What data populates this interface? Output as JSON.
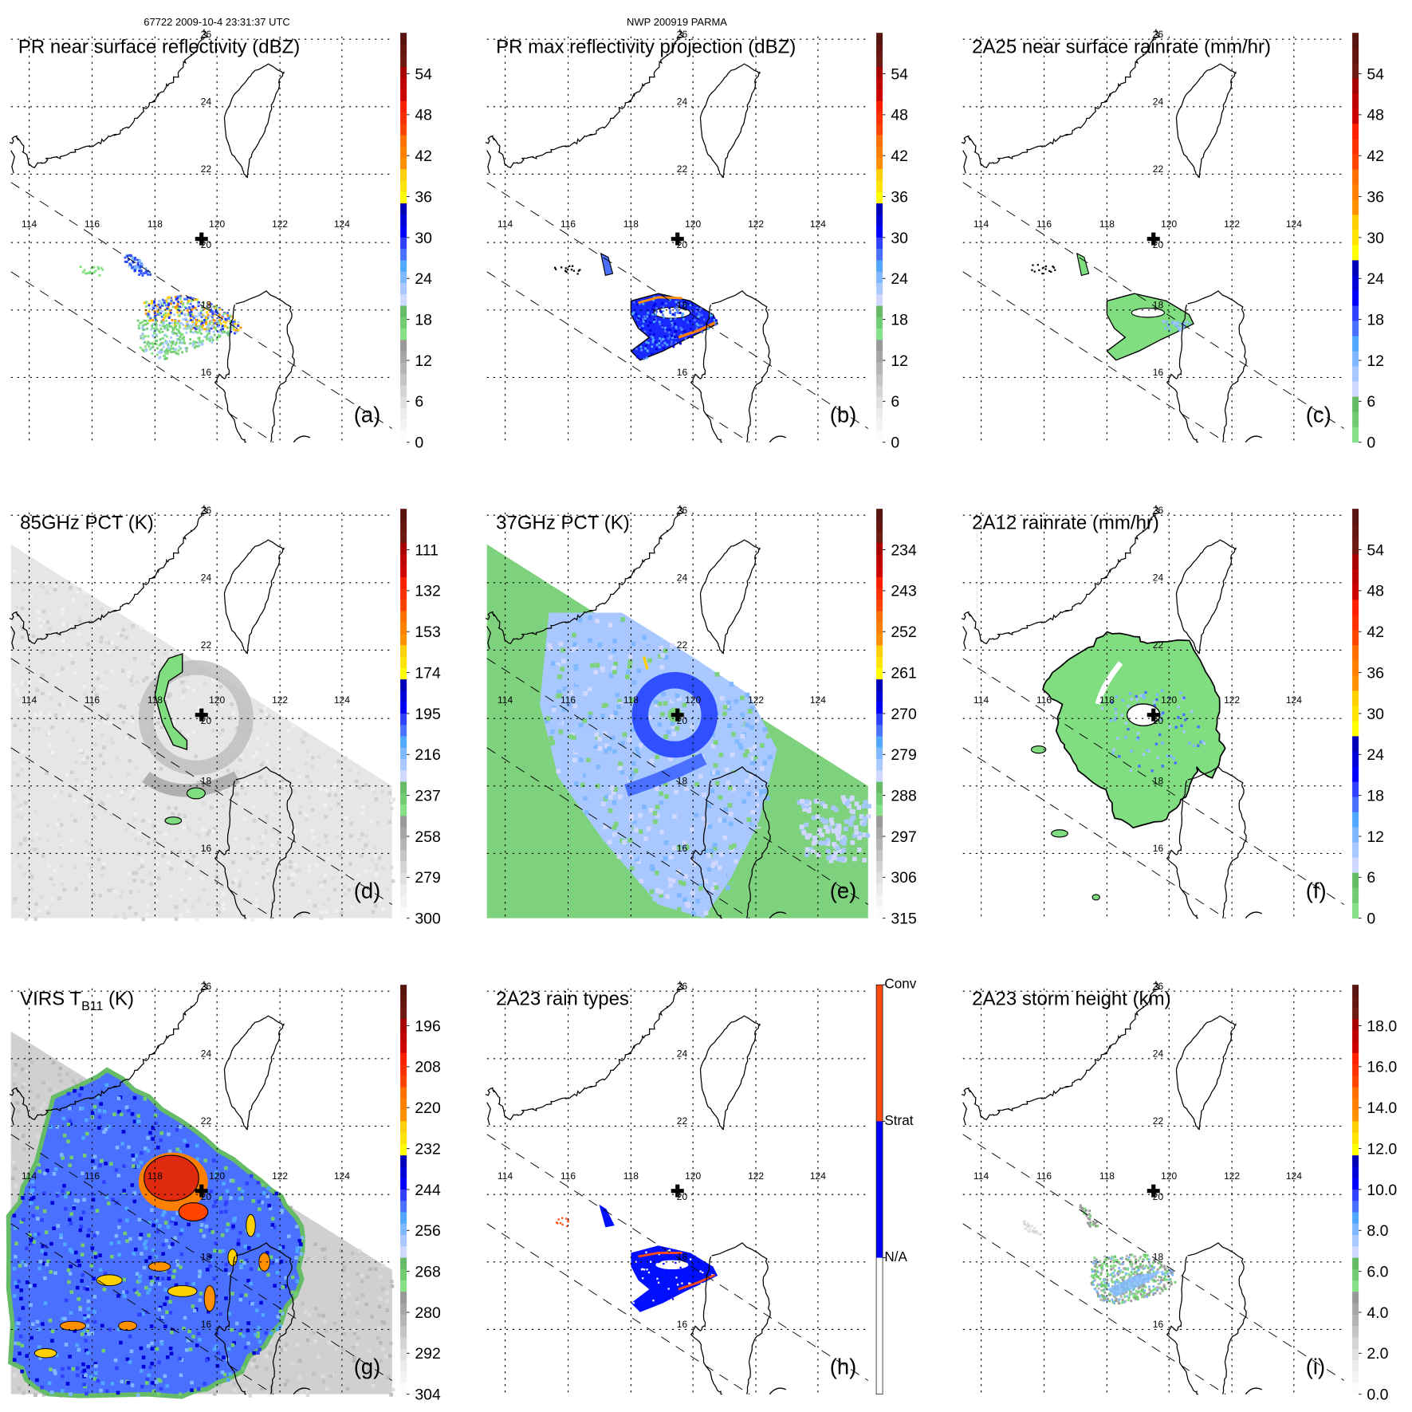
{
  "header": {
    "left": "67722 2009-10-4 23:31:37 UTC",
    "center": "NWP 200919 PARMA"
  },
  "map_labels": {
    "lon": [
      "114",
      "116",
      "118",
      "120",
      "122",
      "124"
    ],
    "lat": [
      "26",
      "24",
      "22",
      "20",
      "18",
      "16"
    ]
  },
  "palettes": {
    "full": [
      "#5a1410",
      "#651510",
      "#6e1a12",
      "#a80000",
      "#bf0000",
      "#cc0000",
      "#ff2000",
      "#ff3000",
      "#ff4400",
      "#ff7000",
      "#ff8000",
      "#ff9000",
      "#ffd000",
      "#ffe400",
      "#ffff00",
      "#0000b8",
      "#0000d8",
      "#0000ff",
      "#3040ff",
      "#4a70ff",
      "#50a8ff",
      "#80b8ff",
      "#a8c8ff",
      "#d0d8ff",
      "#66bb66",
      "#72cc72",
      "#86e086",
      "#999999",
      "#a6a6a6",
      "#b4b4b4",
      "#c4c4c4",
      "#d4d4d4",
      "#e0e0e0",
      "#ececec",
      "#f4f4f4",
      "#fcfcfc"
    ],
    "rain": [
      "#5a1410",
      "#651510",
      "#6e1a12",
      "#a80000",
      "#bf0000",
      "#cc0000",
      "#ff2000",
      "#ff3000",
      "#ff4400",
      "#ff7000",
      "#ff8000",
      "#ff9000",
      "#ffd000",
      "#ffe400",
      "#ffff00",
      "#0000b8",
      "#0000d8",
      "#0000ff",
      "#3040ff",
      "#4a70ff",
      "#50a8ff",
      "#80b8ff",
      "#a8c8ff",
      "#d0d8ff",
      "#66bb66",
      "#72cc72",
      "#86e086"
    ],
    "types": [
      "#ff4a10",
      "#0000ff",
      "#ffffff"
    ]
  },
  "panels": [
    {
      "letter": "(a)",
      "title": "PR near surface reflectivity (dBZ)",
      "colorbar": {
        "palette": "full",
        "top_value": 60,
        "bottom_value": 0,
        "labels": [
          {
            "text": "54",
            "value": 54
          },
          {
            "text": "48",
            "value": 48
          },
          {
            "text": "42",
            "value": 42
          },
          {
            "text": "36",
            "value": 36
          },
          {
            "text": "30",
            "value": 30
          },
          {
            "text": "24",
            "value": 24
          },
          {
            "text": "18",
            "value": 18
          },
          {
            "text": "12",
            "value": 12
          },
          {
            "text": "6",
            "value": 6
          },
          {
            "text": "0",
            "value": 0
          }
        ]
      }
    },
    {
      "letter": "(b)",
      "title": "PR max reflectivity projection (dBZ)",
      "colorbar": {
        "palette": "full",
        "top_value": 60,
        "bottom_value": 0,
        "labels": [
          {
            "text": "54",
            "value": 54
          },
          {
            "text": "48",
            "value": 48
          },
          {
            "text": "42",
            "value": 42
          },
          {
            "text": "36",
            "value": 36
          },
          {
            "text": "30",
            "value": 30
          },
          {
            "text": "24",
            "value": 24
          },
          {
            "text": "18",
            "value": 18
          },
          {
            "text": "12",
            "value": 12
          },
          {
            "text": "6",
            "value": 6
          },
          {
            "text": "0",
            "value": 0
          }
        ]
      }
    },
    {
      "letter": "(c)",
      "title": "2A25 near surface rainrate (mm/hr)",
      "colorbar": {
        "palette": "rain",
        "top_value": 60,
        "bottom_value": 0,
        "labels": [
          {
            "text": "54",
            "value": 54
          },
          {
            "text": "48",
            "value": 48
          },
          {
            "text": "42",
            "value": 42
          },
          {
            "text": "36",
            "value": 36
          },
          {
            "text": "30",
            "value": 30
          },
          {
            "text": "24",
            "value": 24
          },
          {
            "text": "18",
            "value": 18
          },
          {
            "text": "12",
            "value": 12
          },
          {
            "text": "6",
            "value": 6
          },
          {
            "text": "0",
            "value": 0
          }
        ]
      }
    },
    {
      "letter": "(d)",
      "title": "85GHz PCT (K)",
      "colorbar": {
        "palette": "full",
        "top_value": 90,
        "bottom_value": 300,
        "labels": [
          {
            "text": "111",
            "value": 111
          },
          {
            "text": "132",
            "value": 132
          },
          {
            "text": "153",
            "value": 153
          },
          {
            "text": "174",
            "value": 174
          },
          {
            "text": "195",
            "value": 195
          },
          {
            "text": "216",
            "value": 216
          },
          {
            "text": "237",
            "value": 237
          },
          {
            "text": "258",
            "value": 258
          },
          {
            "text": "279",
            "value": 279
          },
          {
            "text": "300",
            "value": 300
          }
        ]
      }
    },
    {
      "letter": "(e)",
      "title": "37GHz PCT (K)",
      "colorbar": {
        "palette": "full",
        "top_value": 225,
        "bottom_value": 315,
        "labels": [
          {
            "text": "234",
            "value": 234
          },
          {
            "text": "243",
            "value": 243
          },
          {
            "text": "252",
            "value": 252
          },
          {
            "text": "261",
            "value": 261
          },
          {
            "text": "270",
            "value": 270
          },
          {
            "text": "279",
            "value": 279
          },
          {
            "text": "288",
            "value": 288
          },
          {
            "text": "297",
            "value": 297
          },
          {
            "text": "306",
            "value": 306
          },
          {
            "text": "315",
            "value": 315
          }
        ]
      }
    },
    {
      "letter": "(f)",
      "title": "2A12 rainrate (mm/hr)",
      "colorbar": {
        "palette": "rain",
        "top_value": 60,
        "bottom_value": 0,
        "labels": [
          {
            "text": "54",
            "value": 54
          },
          {
            "text": "48",
            "value": 48
          },
          {
            "text": "42",
            "value": 42
          },
          {
            "text": "36",
            "value": 36
          },
          {
            "text": "30",
            "value": 30
          },
          {
            "text": "24",
            "value": 24
          },
          {
            "text": "18",
            "value": 18
          },
          {
            "text": "12",
            "value": 12
          },
          {
            "text": "6",
            "value": 6
          },
          {
            "text": "0",
            "value": 0
          }
        ]
      }
    },
    {
      "letter": "(g)",
      "title": "VIRS T",
      "title_sub": "B11",
      "title_suffix": " (K)",
      "colorbar": {
        "palette": "full",
        "top_value": 184,
        "bottom_value": 304,
        "labels": [
          {
            "text": "196",
            "value": 196
          },
          {
            "text": "208",
            "value": 208
          },
          {
            "text": "220",
            "value": 220
          },
          {
            "text": "232",
            "value": 232
          },
          {
            "text": "244",
            "value": 244
          },
          {
            "text": "256",
            "value": 256
          },
          {
            "text": "268",
            "value": 268
          },
          {
            "text": "280",
            "value": 280
          },
          {
            "text": "292",
            "value": 292
          },
          {
            "text": "304",
            "value": 304
          }
        ]
      }
    },
    {
      "letter": "(h)",
      "title": "2A23 rain types",
      "colorbar": {
        "palette": "types",
        "top_value": 3,
        "bottom_value": 0,
        "labels": [
          {
            "text": "Conv",
            "value": 3
          },
          {
            "text": "Strat",
            "value": 2
          },
          {
            "text": "N/A",
            "value": 1
          }
        ]
      }
    },
    {
      "letter": "(i)",
      "title": "2A23 storm height (km)",
      "colorbar": {
        "palette": "full",
        "top_value": 20,
        "bottom_value": 0,
        "labels": [
          {
            "text": "18.0",
            "value": 18
          },
          {
            "text": "16.0",
            "value": 16
          },
          {
            "text": "14.0",
            "value": 14
          },
          {
            "text": "12.0",
            "value": 12
          },
          {
            "text": "10.0",
            "value": 10
          },
          {
            "text": "8.0",
            "value": 8
          },
          {
            "text": "6.0",
            "value": 6
          },
          {
            "text": "4.0",
            "value": 4
          },
          {
            "text": "2.0",
            "value": 2
          },
          {
            "text": "0.0",
            "value": 0
          }
        ]
      }
    }
  ]
}
